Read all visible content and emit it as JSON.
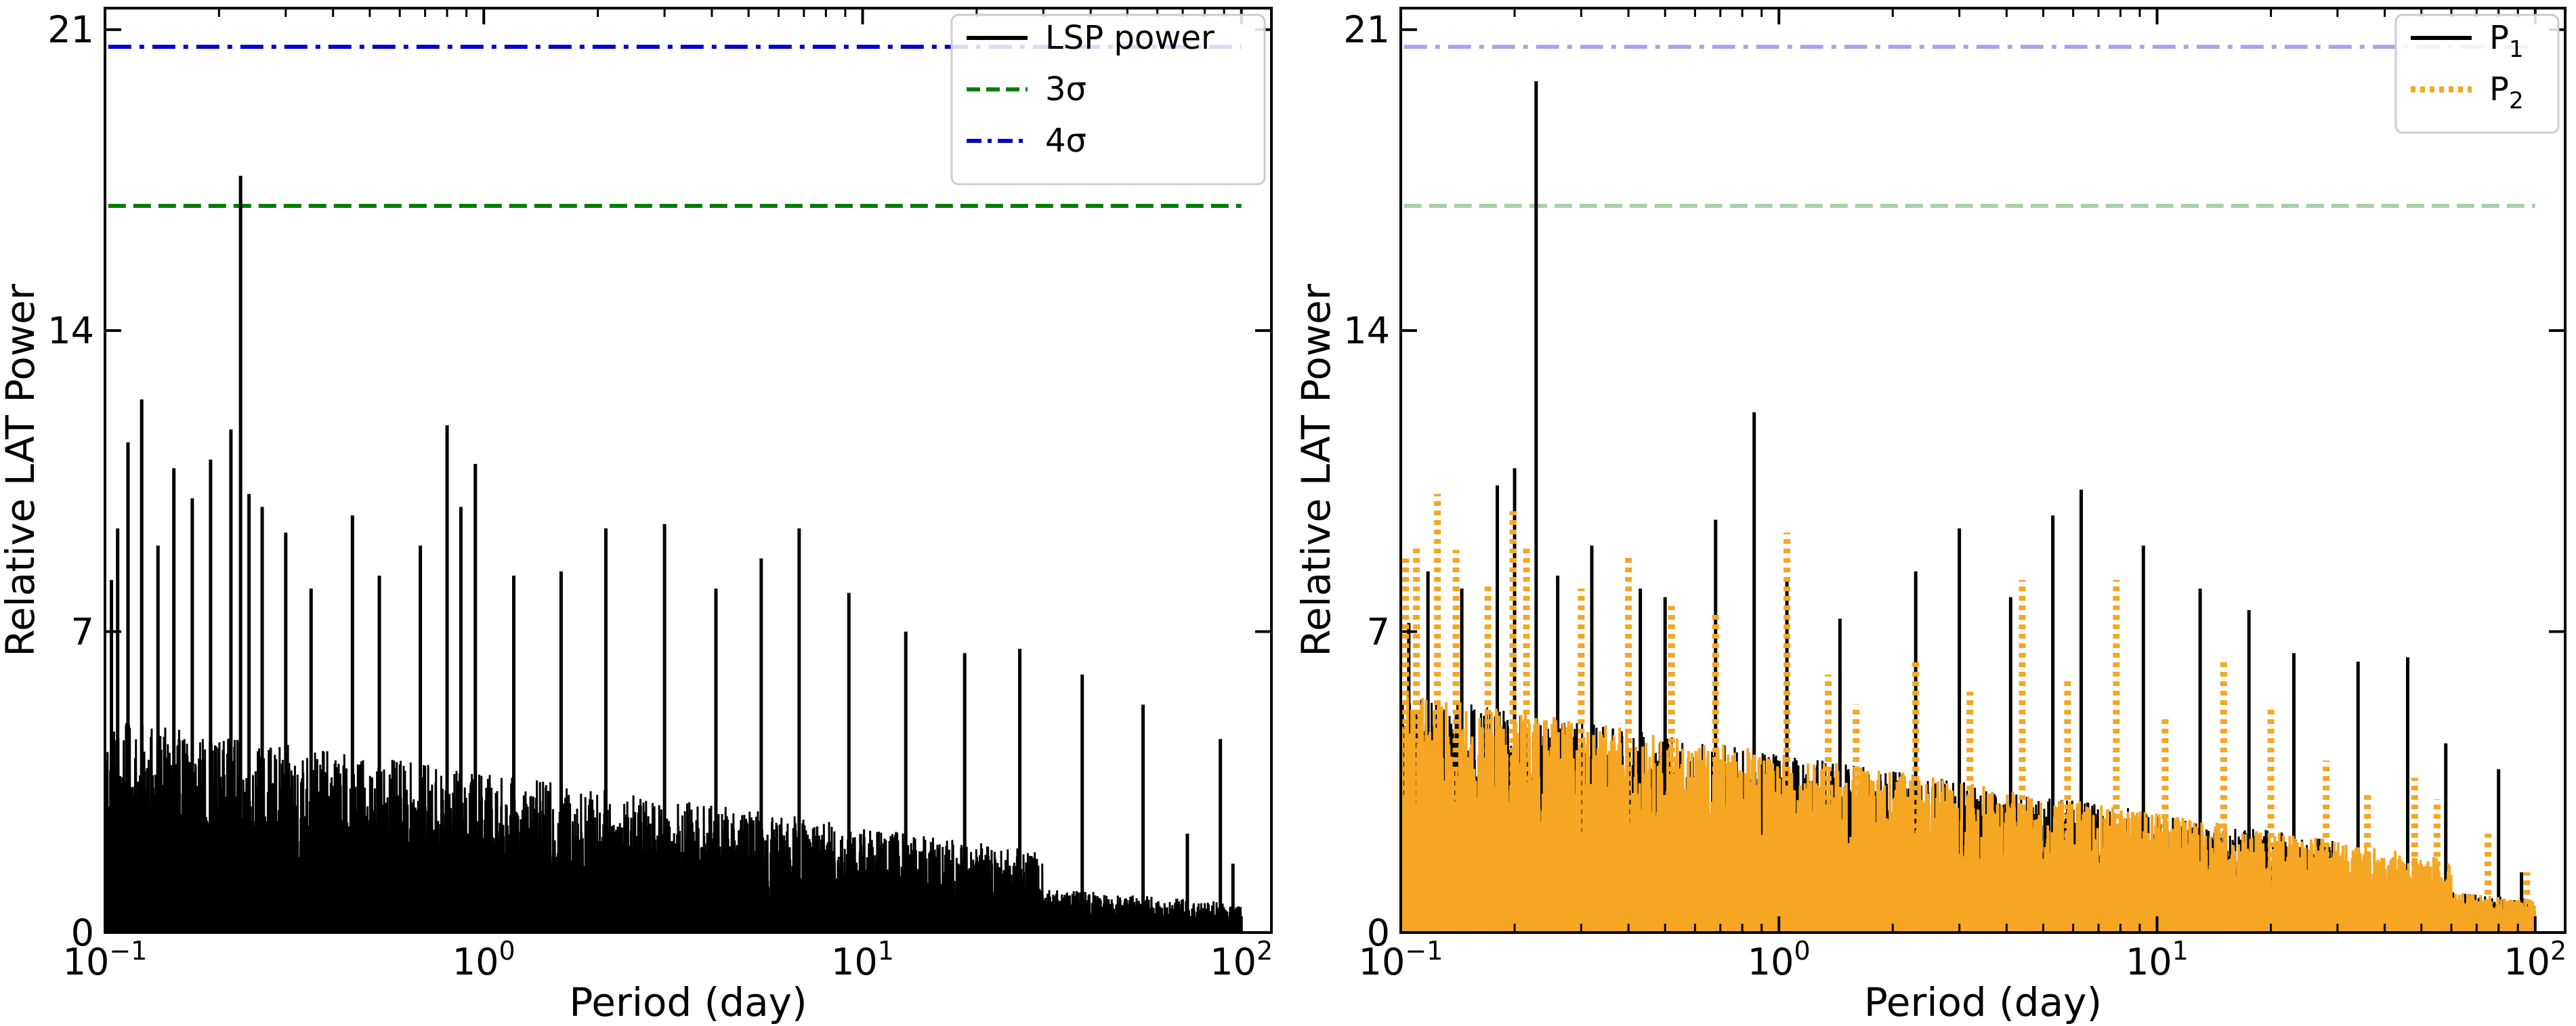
{
  "chart_data": [
    {
      "id": "left",
      "type": "line",
      "xscale": "log",
      "xlim": [
        0.1,
        120
      ],
      "ylim": [
        0,
        21.5
      ],
      "xlabel": "Period (day)",
      "ylabel": "Relative LAT Power",
      "yticks": [
        0,
        7,
        14,
        21
      ],
      "yticklabels": [
        "0",
        "7",
        "14",
        "21"
      ],
      "xticks": [
        0.1,
        1,
        10,
        100
      ],
      "xticklabels": [
        {
          "base": "10",
          "exp": "−1"
        },
        {
          "base": "10",
          "exp": "0"
        },
        {
          "base": "10",
          "exp": "1"
        },
        {
          "base": "10",
          "exp": "2"
        }
      ],
      "series": [
        {
          "name": "LSP power",
          "label": "LSP power",
          "color": "#000000",
          "style": "solid",
          "alpha": 1,
          "dense_baseline": 3.2,
          "dense_until": 30,
          "peaks": [
            [
              0.104,
              8.2
            ],
            [
              0.108,
              9.4
            ],
            [
              0.115,
              11.4
            ],
            [
              0.125,
              12.4
            ],
            [
              0.138,
              9.0
            ],
            [
              0.152,
              10.8
            ],
            [
              0.17,
              10.1
            ],
            [
              0.19,
              11.0
            ],
            [
              0.215,
              11.7
            ],
            [
              0.228,
              17.6
            ],
            [
              0.24,
              10.2
            ],
            [
              0.26,
              9.9
            ],
            [
              0.3,
              9.3
            ],
            [
              0.35,
              8.0
            ],
            [
              0.45,
              9.7
            ],
            [
              0.53,
              8.3
            ],
            [
              0.68,
              9.0
            ],
            [
              0.8,
              11.8
            ],
            [
              0.87,
              9.9
            ],
            [
              0.95,
              10.9
            ],
            [
              1.2,
              8.3
            ],
            [
              1.6,
              8.4
            ],
            [
              2.1,
              9.4
            ],
            [
              3.0,
              9.5
            ],
            [
              4.1,
              8.0
            ],
            [
              5.4,
              8.7
            ],
            [
              6.8,
              9.4
            ],
            [
              9.2,
              7.9
            ],
            [
              13.0,
              7.0
            ],
            [
              18.6,
              6.5
            ],
            [
              26.0,
              6.6
            ],
            [
              38.0,
              6.0
            ],
            [
              55.0,
              5.3
            ],
            [
              72.0,
              2.3
            ],
            [
              88.0,
              4.5
            ],
            [
              95.0,
              1.6
            ]
          ]
        },
        {
          "name": "3sigma",
          "label": "3σ",
          "color": "#008000",
          "style": "dashed",
          "alpha": 1,
          "level": 16.9
        },
        {
          "name": "4sigma",
          "label": "4σ",
          "color": "#0000cc",
          "style": "dashdot",
          "alpha": 1,
          "level": 20.6
        }
      ],
      "legend": {
        "position": "top-right",
        "entries": [
          {
            "text": "LSP power",
            "sub": "",
            "color": "#000000",
            "style": "solid"
          },
          {
            "text": "3σ",
            "sub": "",
            "color": "#008000",
            "style": "dashed"
          },
          {
            "text": "4σ",
            "sub": "",
            "color": "#0000cc",
            "style": "dashdot"
          }
        ]
      }
    },
    {
      "id": "right",
      "type": "line",
      "xscale": "log",
      "xlim": [
        0.1,
        120
      ],
      "ylim": [
        0,
        21.5
      ],
      "xlabel": "Period (day)",
      "ylabel": "Relative LAT Power",
      "yticks": [
        0,
        7,
        14,
        21
      ],
      "yticklabels": [
        "0",
        "7",
        "14",
        "21"
      ],
      "xticks": [
        0.1,
        1,
        10,
        100
      ],
      "xticklabels": [
        {
          "base": "10",
          "exp": "−1"
        },
        {
          "base": "10",
          "exp": "0"
        },
        {
          "base": "10",
          "exp": "1"
        },
        {
          "base": "10",
          "exp": "2"
        }
      ],
      "series": [
        {
          "name": "P1",
          "label": "P",
          "sub": "1",
          "color": "#000000",
          "style": "solid",
          "alpha": 1,
          "dense_baseline": 3.6,
          "dense_until": 30,
          "peaks": [
            [
              0.105,
              7.2
            ],
            [
              0.118,
              8.4
            ],
            [
              0.145,
              8.0
            ],
            [
              0.18,
              10.4
            ],
            [
              0.2,
              10.8
            ],
            [
              0.228,
              19.8
            ],
            [
              0.26,
              8.3
            ],
            [
              0.32,
              9.0
            ],
            [
              0.43,
              8.0
            ],
            [
              0.5,
              7.8
            ],
            [
              0.68,
              9.6
            ],
            [
              0.86,
              12.1
            ],
            [
              1.05,
              8.2
            ],
            [
              1.45,
              7.3
            ],
            [
              2.3,
              8.4
            ],
            [
              3.0,
              9.4
            ],
            [
              4.1,
              7.8
            ],
            [
              5.3,
              9.7
            ],
            [
              6.3,
              10.3
            ],
            [
              9.2,
              9.0
            ],
            [
              13.0,
              8.0
            ],
            [
              17.5,
              7.5
            ],
            [
              23.0,
              6.5
            ],
            [
              34.0,
              6.3
            ],
            [
              46.0,
              6.4
            ],
            [
              58.0,
              4.4
            ],
            [
              80.0,
              3.8
            ],
            [
              92.0,
              1.4
            ]
          ]
        },
        {
          "name": "P2",
          "label": "P",
          "sub": "2",
          "color": "#f5a623",
          "style": "dotted",
          "alpha": 1,
          "dense_baseline": 3.6,
          "dense_until": 60,
          "peaks": [
            [
              0.103,
              8.7
            ],
            [
              0.11,
              9.0
            ],
            [
              0.125,
              10.2
            ],
            [
              0.14,
              8.9
            ],
            [
              0.17,
              8.1
            ],
            [
              0.198,
              9.8
            ],
            [
              0.215,
              9.0
            ],
            [
              0.3,
              8.0
            ],
            [
              0.4,
              8.8
            ],
            [
              0.52,
              7.6
            ],
            [
              0.68,
              7.4
            ],
            [
              1.05,
              9.3
            ],
            [
              1.35,
              6.0
            ],
            [
              1.6,
              5.3
            ],
            [
              2.3,
              6.3
            ],
            [
              3.2,
              5.6
            ],
            [
              4.4,
              8.2
            ],
            [
              5.8,
              5.9
            ],
            [
              7.8,
              8.2
            ],
            [
              10.5,
              5.0
            ],
            [
              15.0,
              6.4
            ],
            [
              20.0,
              5.2
            ],
            [
              28.0,
              4.0
            ],
            [
              36.0,
              3.2
            ],
            [
              48.0,
              3.6
            ],
            [
              55.0,
              3.1
            ],
            [
              75.0,
              2.3
            ],
            [
              95.0,
              1.4
            ]
          ]
        },
        {
          "name": "3sigma",
          "label": "",
          "color": "#008000",
          "style": "dashed",
          "alpha": 0.35,
          "level": 16.9
        },
        {
          "name": "4sigma",
          "label": "",
          "color": "#0000cc",
          "style": "dashdot",
          "alpha": 0.35,
          "level": 20.6
        }
      ],
      "legend": {
        "position": "top-right",
        "entries": [
          {
            "text": "P",
            "sub": "1",
            "color": "#000000",
            "style": "solid"
          },
          {
            "text": "P",
            "sub": "2",
            "color": "#f5a623",
            "style": "dotted"
          }
        ]
      }
    }
  ]
}
